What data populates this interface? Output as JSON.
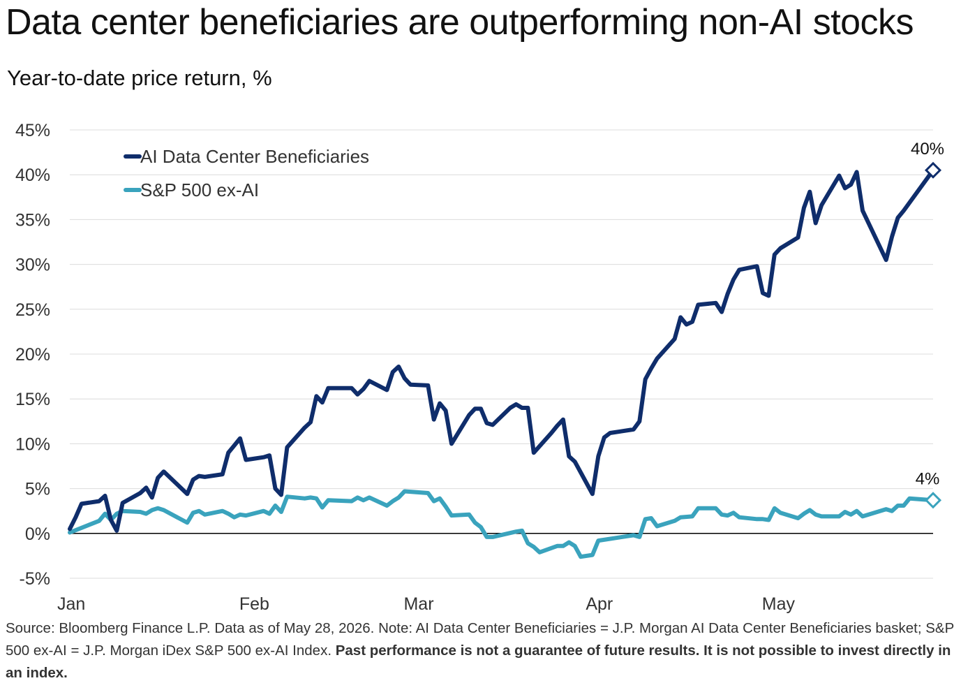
{
  "header": {
    "title": "Data center beneficiaries are outperforming non-AI stocks",
    "subtitle": "Year-to-date price return, %"
  },
  "footnote": {
    "text": "Source: Bloomberg Finance L.P. Data as of May 28, 2026.  Note: AI Data Center Beneficiaries = J.P. Morgan AI Data Center Beneficiaries basket; S&P 500 ex-AI = J.P. Morgan iDex S&P 500 ex-AI Index. ",
    "bold_text": "Past performance is not a guarantee of future results. It is not possible to invest directly in an index."
  },
  "colors": {
    "ai": "#0f2d6b",
    "sp": "#3aa3bd",
    "grid": "#dcdcdc",
    "axis": "#000000"
  },
  "chart_data": {
    "type": "line",
    "title": "Data center beneficiaries are outperforming non-AI stocks",
    "ylabel": "Year-to-date price return, %",
    "ylim": [
      -5,
      45
    ],
    "yticks": [
      45,
      40,
      35,
      30,
      25,
      20,
      15,
      10,
      5,
      0,
      -5
    ],
    "ytick_labels": [
      "45%",
      "40%",
      "35%",
      "30%",
      "25%",
      "20%",
      "15%",
      "10%",
      "5%",
      "0%",
      "-5%"
    ],
    "xlim": [
      "2026-01-01",
      "2026-05-28"
    ],
    "xticks": [
      {
        "date": "2026-01-01",
        "label": "Jan"
      },
      {
        "date": "2026-02-01",
        "label": "Feb"
      },
      {
        "date": "2026-03-01",
        "label": "Mar"
      },
      {
        "date": "2026-04-01",
        "label": "Apr"
      },
      {
        "date": "2026-05-01",
        "label": "May"
      }
    ],
    "grid": true,
    "legend": "top-left",
    "series": [
      {
        "name": "AI Data Center Beneficiaries",
        "end_label": "40%",
        "points": [
          [
            "2026-01-01",
            0.5
          ],
          [
            "2026-01-02",
            1.8
          ],
          [
            "2026-01-03",
            3.3
          ],
          [
            "2026-01-06",
            3.6
          ],
          [
            "2026-01-07",
            4.2
          ],
          [
            "2026-01-08",
            1.5
          ],
          [
            "2026-01-09",
            0.3
          ],
          [
            "2026-01-10",
            3.4
          ],
          [
            "2026-01-13",
            4.5
          ],
          [
            "2026-01-14",
            5.1
          ],
          [
            "2026-01-15",
            4.0
          ],
          [
            "2026-01-16",
            6.2
          ],
          [
            "2026-01-17",
            6.9
          ],
          [
            "2026-01-21",
            4.4
          ],
          [
            "2026-01-22",
            6.0
          ],
          [
            "2026-01-23",
            6.4
          ],
          [
            "2026-01-24",
            6.3
          ],
          [
            "2026-01-27",
            6.6
          ],
          [
            "2026-01-28",
            9.0
          ],
          [
            "2026-01-29",
            9.8
          ],
          [
            "2026-01-30",
            10.6
          ],
          [
            "2026-01-31",
            8.2
          ],
          [
            "2026-02-03",
            8.5
          ],
          [
            "2026-02-04",
            8.7
          ],
          [
            "2026-02-05",
            5.0
          ],
          [
            "2026-02-06",
            4.3
          ],
          [
            "2026-02-07",
            9.6
          ],
          [
            "2026-02-10",
            11.8
          ],
          [
            "2026-02-11",
            12.4
          ],
          [
            "2026-02-12",
            15.3
          ],
          [
            "2026-02-13",
            14.6
          ],
          [
            "2026-02-14",
            16.2
          ],
          [
            "2026-02-18",
            16.2
          ],
          [
            "2026-02-19",
            15.5
          ],
          [
            "2026-02-20",
            16.1
          ],
          [
            "2026-02-21",
            17.0
          ],
          [
            "2026-02-24",
            16.0
          ],
          [
            "2026-02-25",
            18.0
          ],
          [
            "2026-02-26",
            18.6
          ],
          [
            "2026-02-27",
            17.3
          ],
          [
            "2026-02-28",
            16.6
          ],
          [
            "2026-03-03",
            16.5
          ],
          [
            "2026-03-04",
            12.7
          ],
          [
            "2026-03-05",
            14.5
          ],
          [
            "2026-03-06",
            13.7
          ],
          [
            "2026-03-07",
            10.0
          ],
          [
            "2026-03-10",
            13.2
          ],
          [
            "2026-03-11",
            13.9
          ],
          [
            "2026-03-12",
            13.9
          ],
          [
            "2026-03-13",
            12.3
          ],
          [
            "2026-03-14",
            12.1
          ],
          [
            "2026-03-17",
            14.0
          ],
          [
            "2026-03-18",
            14.4
          ],
          [
            "2026-03-19",
            14.0
          ],
          [
            "2026-03-20",
            14.0
          ],
          [
            "2026-03-21",
            9.0
          ],
          [
            "2026-03-24",
            11.2
          ],
          [
            "2026-03-25",
            12.0
          ],
          [
            "2026-03-26",
            12.7
          ],
          [
            "2026-03-27",
            8.6
          ],
          [
            "2026-03-28",
            8.0
          ],
          [
            "2026-03-31",
            4.4
          ],
          [
            "2026-04-01",
            8.6
          ],
          [
            "2026-04-02",
            10.7
          ],
          [
            "2026-04-03",
            11.2
          ],
          [
            "2026-04-07",
            11.6
          ],
          [
            "2026-04-08",
            12.5
          ],
          [
            "2026-04-09",
            17.2
          ],
          [
            "2026-04-10",
            18.4
          ],
          [
            "2026-04-11",
            19.5
          ],
          [
            "2026-04-14",
            21.7
          ],
          [
            "2026-04-15",
            24.1
          ],
          [
            "2026-04-16",
            23.3
          ],
          [
            "2026-04-17",
            23.6
          ],
          [
            "2026-04-18",
            25.5
          ],
          [
            "2026-04-21",
            25.7
          ],
          [
            "2026-04-22",
            24.7
          ],
          [
            "2026-04-23",
            26.7
          ],
          [
            "2026-04-24",
            28.3
          ],
          [
            "2026-04-25",
            29.4
          ],
          [
            "2026-04-28",
            29.8
          ],
          [
            "2026-04-29",
            26.8
          ],
          [
            "2026-04-30",
            26.5
          ],
          [
            "2026-05-01",
            31.1
          ],
          [
            "2026-05-02",
            31.8
          ],
          [
            "2026-05-05",
            33.0
          ],
          [
            "2026-05-06",
            36.3
          ],
          [
            "2026-05-07",
            38.1
          ],
          [
            "2026-05-08",
            34.6
          ],
          [
            "2026-05-09",
            36.6
          ],
          [
            "2026-05-12",
            39.9
          ],
          [
            "2026-05-13",
            38.5
          ],
          [
            "2026-05-14",
            38.9
          ],
          [
            "2026-05-15",
            40.3
          ],
          [
            "2026-05-16",
            36.0
          ],
          [
            "2026-05-20",
            30.5
          ],
          [
            "2026-05-21",
            33.1
          ],
          [
            "2026-05-22",
            35.2
          ],
          [
            "2026-05-23",
            36.0
          ],
          [
            "2026-05-28",
            40.5
          ]
        ]
      },
      {
        "name": "S&P 500 ex-AI",
        "end_label": "4%",
        "points": [
          [
            "2026-01-01",
            0.1
          ],
          [
            "2026-01-06",
            1.4
          ],
          [
            "2026-01-07",
            2.2
          ],
          [
            "2026-01-08",
            1.5
          ],
          [
            "2026-01-09",
            2.2
          ],
          [
            "2026-01-10",
            2.5
          ],
          [
            "2026-01-13",
            2.4
          ],
          [
            "2026-01-14",
            2.2
          ],
          [
            "2026-01-15",
            2.6
          ],
          [
            "2026-01-16",
            2.8
          ],
          [
            "2026-01-17",
            2.6
          ],
          [
            "2026-01-21",
            1.2
          ],
          [
            "2026-01-22",
            2.3
          ],
          [
            "2026-01-23",
            2.5
          ],
          [
            "2026-01-24",
            2.1
          ],
          [
            "2026-01-27",
            2.5
          ],
          [
            "2026-01-28",
            2.2
          ],
          [
            "2026-01-29",
            1.8
          ],
          [
            "2026-01-30",
            2.1
          ],
          [
            "2026-01-31",
            2.0
          ],
          [
            "2026-02-03",
            2.5
          ],
          [
            "2026-02-04",
            2.2
          ],
          [
            "2026-02-05",
            3.1
          ],
          [
            "2026-02-06",
            2.4
          ],
          [
            "2026-02-07",
            4.1
          ],
          [
            "2026-02-10",
            3.9
          ],
          [
            "2026-02-11",
            4.0
          ],
          [
            "2026-02-12",
            3.9
          ],
          [
            "2026-02-13",
            2.9
          ],
          [
            "2026-02-14",
            3.7
          ],
          [
            "2026-02-18",
            3.6
          ],
          [
            "2026-02-19",
            4.0
          ],
          [
            "2026-02-20",
            3.7
          ],
          [
            "2026-02-21",
            4.0
          ],
          [
            "2026-02-24",
            3.1
          ],
          [
            "2026-02-25",
            3.6
          ],
          [
            "2026-02-26",
            4.0
          ],
          [
            "2026-02-27",
            4.7
          ],
          [
            "2026-03-03",
            4.5
          ],
          [
            "2026-03-04",
            3.6
          ],
          [
            "2026-03-05",
            3.9
          ],
          [
            "2026-03-06",
            3.0
          ],
          [
            "2026-03-07",
            2.0
          ],
          [
            "2026-03-10",
            2.1
          ],
          [
            "2026-03-11",
            1.2
          ],
          [
            "2026-03-12",
            0.7
          ],
          [
            "2026-03-13",
            -0.4
          ],
          [
            "2026-03-14",
            -0.4
          ],
          [
            "2026-03-18",
            0.2
          ],
          [
            "2026-03-19",
            0.3
          ],
          [
            "2026-03-20",
            -1.1
          ],
          [
            "2026-03-21",
            -1.5
          ],
          [
            "2026-03-22",
            -2.1
          ],
          [
            "2026-03-25",
            -1.4
          ],
          [
            "2026-03-26",
            -1.4
          ],
          [
            "2026-03-27",
            -1.0
          ],
          [
            "2026-03-28",
            -1.4
          ],
          [
            "2026-03-29",
            -2.6
          ],
          [
            "2026-03-31",
            -2.4
          ],
          [
            "2026-04-01",
            -0.8
          ],
          [
            "2026-04-07",
            -0.2
          ],
          [
            "2026-04-08",
            -0.4
          ],
          [
            "2026-04-09",
            1.6
          ],
          [
            "2026-04-10",
            1.7
          ],
          [
            "2026-04-11",
            0.8
          ],
          [
            "2026-04-14",
            1.4
          ],
          [
            "2026-04-15",
            1.8
          ],
          [
            "2026-04-17",
            1.9
          ],
          [
            "2026-04-18",
            2.8
          ],
          [
            "2026-04-21",
            2.8
          ],
          [
            "2026-04-22",
            2.1
          ],
          [
            "2026-04-23",
            2.0
          ],
          [
            "2026-04-24",
            2.3
          ],
          [
            "2026-04-25",
            1.8
          ],
          [
            "2026-04-28",
            1.6
          ],
          [
            "2026-04-29",
            1.6
          ],
          [
            "2026-04-30",
            1.5
          ],
          [
            "2026-05-01",
            2.8
          ],
          [
            "2026-05-02",
            2.3
          ],
          [
            "2026-05-05",
            1.7
          ],
          [
            "2026-05-06",
            2.2
          ],
          [
            "2026-05-07",
            2.6
          ],
          [
            "2026-05-08",
            2.1
          ],
          [
            "2026-05-09",
            1.9
          ],
          [
            "2026-05-12",
            1.9
          ],
          [
            "2026-05-13",
            2.4
          ],
          [
            "2026-05-14",
            2.1
          ],
          [
            "2026-05-15",
            2.5
          ],
          [
            "2026-05-16",
            1.9
          ],
          [
            "2026-05-20",
            2.7
          ],
          [
            "2026-05-21",
            2.5
          ],
          [
            "2026-05-22",
            3.1
          ],
          [
            "2026-05-23",
            3.1
          ],
          [
            "2026-05-24",
            3.9
          ],
          [
            "2026-05-28",
            3.7
          ]
        ]
      }
    ]
  }
}
